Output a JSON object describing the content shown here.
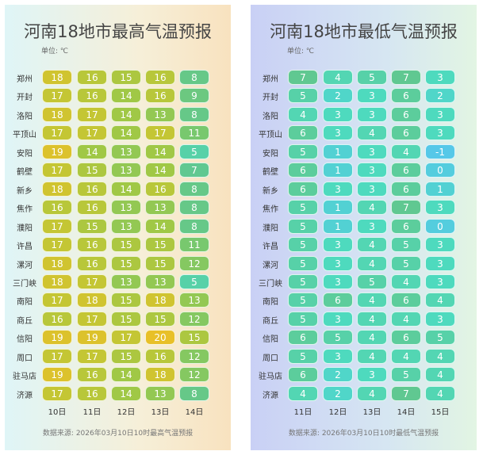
{
  "panels": [
    {
      "title": "河南18地市最高气温预报",
      "unit": "单位: ℃",
      "days": [
        "10日",
        "11日",
        "12日",
        "13日",
        "14日"
      ],
      "rows": [
        {
          "city": "郑州",
          "values": [
            18,
            16,
            15,
            16,
            8
          ]
        },
        {
          "city": "开封",
          "values": [
            17,
            16,
            14,
            16,
            9
          ]
        },
        {
          "city": "洛阳",
          "values": [
            18,
            17,
            14,
            13,
            8
          ]
        },
        {
          "city": "平顶山",
          "values": [
            17,
            17,
            14,
            17,
            11
          ]
        },
        {
          "city": "安阳",
          "values": [
            19,
            14,
            13,
            14,
            5
          ]
        },
        {
          "city": "鹤壁",
          "values": [
            17,
            15,
            13,
            14,
            7
          ]
        },
        {
          "city": "新乡",
          "values": [
            18,
            16,
            14,
            16,
            8
          ]
        },
        {
          "city": "焦作",
          "values": [
            16,
            16,
            13,
            13,
            8
          ]
        },
        {
          "city": "濮阳",
          "values": [
            17,
            15,
            13,
            14,
            8
          ]
        },
        {
          "city": "许昌",
          "values": [
            17,
            16,
            15,
            15,
            11
          ]
        },
        {
          "city": "漯河",
          "values": [
            18,
            16,
            15,
            15,
            12
          ]
        },
        {
          "city": "三门峡",
          "values": [
            18,
            17,
            13,
            13,
            5
          ]
        },
        {
          "city": "南阳",
          "values": [
            17,
            18,
            15,
            18,
            13
          ]
        },
        {
          "city": "商丘",
          "values": [
            16,
            17,
            15,
            15,
            12
          ]
        },
        {
          "city": "信阳",
          "values": [
            19,
            19,
            17,
            20,
            15
          ]
        },
        {
          "city": "周口",
          "values": [
            17,
            17,
            15,
            16,
            12
          ]
        },
        {
          "city": "驻马店",
          "values": [
            19,
            16,
            14,
            18,
            12
          ]
        },
        {
          "city": "济源",
          "values": [
            17,
            16,
            14,
            13,
            8
          ]
        }
      ],
      "source": "数据来源: 2026年03月10日10时最高气温预报"
    },
    {
      "title": "河南18地市最低气温预报",
      "unit": "单位: ℃",
      "days": [
        "11日",
        "12日",
        "13日",
        "14日",
        "15日"
      ],
      "rows": [
        {
          "city": "郑州",
          "values": [
            7,
            4,
            5,
            7,
            3
          ]
        },
        {
          "city": "开封",
          "values": [
            5,
            2,
            3,
            6,
            2
          ]
        },
        {
          "city": "洛阳",
          "values": [
            4,
            3,
            3,
            6,
            3
          ]
        },
        {
          "city": "平顶山",
          "values": [
            6,
            3,
            4,
            6,
            3
          ]
        },
        {
          "city": "安阳",
          "values": [
            5,
            1,
            3,
            4,
            -1
          ]
        },
        {
          "city": "鹤壁",
          "values": [
            6,
            1,
            3,
            6,
            0
          ]
        },
        {
          "city": "新乡",
          "values": [
            6,
            3,
            3,
            6,
            1
          ]
        },
        {
          "city": "焦作",
          "values": [
            5,
            1,
            4,
            7,
            3
          ]
        },
        {
          "city": "濮阳",
          "values": [
            5,
            1,
            3,
            6,
            0
          ]
        },
        {
          "city": "许昌",
          "values": [
            5,
            3,
            4,
            5,
            3
          ]
        },
        {
          "city": "漯河",
          "values": [
            5,
            3,
            4,
            5,
            3
          ]
        },
        {
          "city": "三门峡",
          "values": [
            5,
            3,
            5,
            4,
            3
          ]
        },
        {
          "city": "南阳",
          "values": [
            5,
            6,
            4,
            6,
            4
          ]
        },
        {
          "city": "商丘",
          "values": [
            5,
            3,
            4,
            4,
            3
          ]
        },
        {
          "city": "信阳",
          "values": [
            6,
            5,
            4,
            6,
            5
          ]
        },
        {
          "city": "周口",
          "values": [
            5,
            3,
            4,
            4,
            4
          ]
        },
        {
          "city": "驻马店",
          "values": [
            6,
            2,
            3,
            5,
            4
          ]
        },
        {
          "city": "济源",
          "values": [
            4,
            2,
            4,
            7,
            4
          ]
        }
      ],
      "source": "数据来源: 2026年03月10日10时最低气温预报"
    }
  ]
}
